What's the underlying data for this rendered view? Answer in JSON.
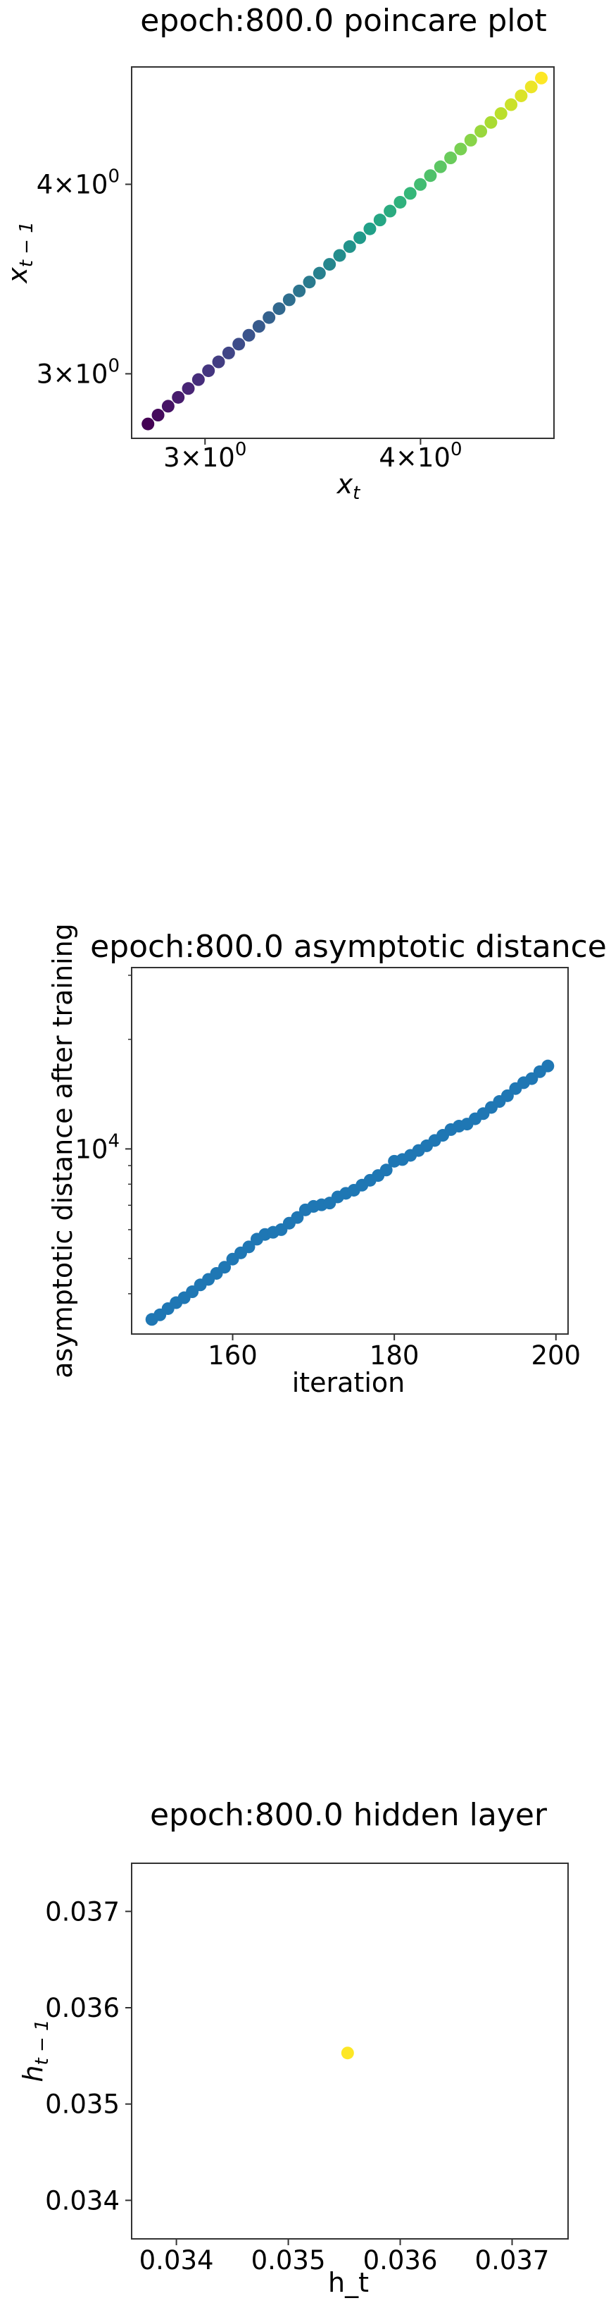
{
  "chart_data": [
    {
      "type": "scatter",
      "title": "epoch:800.0 poincare plot",
      "xlabel": "x",
      "xlabel_sub": "t",
      "ylabel": "x",
      "ylabel_sub": "t − 1",
      "xscale": "log",
      "yscale": "log",
      "xlim": [
        2.72,
        4.78
      ],
      "ylim": [
        2.72,
        4.78
      ],
      "xticks": [
        {
          "value": 3,
          "base": "3",
          "mult": "×",
          "ten": "10",
          "exp": "0"
        },
        {
          "value": 4,
          "base": "4",
          "mult": "×",
          "ten": "10",
          "exp": "0"
        }
      ],
      "yticks": [
        {
          "value": 3,
          "base": "3",
          "mult": "×",
          "ten": "10",
          "exp": "0"
        },
        {
          "value": 4,
          "base": "4",
          "mult": "×",
          "ten": "10",
          "exp": "0"
        }
      ],
      "colormap": "viridis",
      "point_count": 40,
      "points_start": [
        2.78,
        2.78
      ],
      "points_end": [
        4.7,
        4.7
      ],
      "grid": false
    },
    {
      "type": "scatter",
      "title": "epoch:800.0 asymptotic distance",
      "xlabel": "iteration",
      "ylabel": "asymptotic distance after training",
      "xscale": "linear",
      "yscale": "log",
      "xlim": [
        147.5,
        201.5
      ],
      "ylim": [
        3100,
        31500
      ],
      "xticks": [
        {
          "value": 160,
          "label": "160"
        },
        {
          "value": 180,
          "label": "180"
        },
        {
          "value": 200,
          "label": "200"
        }
      ],
      "yticks": [
        {
          "value": 10000,
          "ten": "10",
          "exp": "4"
        }
      ],
      "x": [
        150,
        151,
        152,
        153,
        154,
        155,
        156,
        157,
        158,
        159,
        160,
        161,
        162,
        163,
        164,
        165,
        166,
        167,
        168,
        169,
        170,
        171,
        172,
        173,
        174,
        175,
        176,
        177,
        178,
        179,
        180,
        181,
        182,
        183,
        184,
        185,
        186,
        187,
        188,
        189,
        190,
        191,
        192,
        193,
        194,
        195,
        196,
        197,
        198,
        199
      ],
      "y": [
        3400,
        3500,
        3640,
        3780,
        3900,
        4050,
        4230,
        4380,
        4550,
        4730,
        4980,
        5180,
        5380,
        5650,
        5820,
        5900,
        6000,
        6250,
        6480,
        6800,
        6950,
        7020,
        7100,
        7380,
        7550,
        7700,
        7950,
        8200,
        8450,
        8750,
        9250,
        9350,
        9600,
        9900,
        10200,
        10550,
        10900,
        11300,
        11550,
        11700,
        12100,
        12500,
        13000,
        13500,
        14000,
        14650,
        15200,
        15600,
        16300,
        16900
      ],
      "color": "#1f77b4",
      "grid": false
    },
    {
      "type": "scatter",
      "title": "epoch:800.0 hidden layer",
      "xlabel": "h_t",
      "ylabel": "h",
      "ylabel_sub": "t − 1",
      "xscale": "linear",
      "yscale": "linear",
      "xlim": [
        0.0336,
        0.0375
      ],
      "ylim": [
        0.0336,
        0.0375
      ],
      "xticks": [
        {
          "value": 0.034,
          "label": "0.034"
        },
        {
          "value": 0.035,
          "label": "0.035"
        },
        {
          "value": 0.036,
          "label": "0.036"
        },
        {
          "value": 0.037,
          "label": "0.037"
        }
      ],
      "yticks": [
        {
          "value": 0.034,
          "label": "0.034"
        },
        {
          "value": 0.035,
          "label": "0.035"
        },
        {
          "value": 0.036,
          "label": "0.036"
        },
        {
          "value": 0.037,
          "label": "0.037"
        }
      ],
      "x": [
        0.03553
      ],
      "y": [
        0.03553
      ],
      "color": "#fde725",
      "grid": false
    }
  ]
}
